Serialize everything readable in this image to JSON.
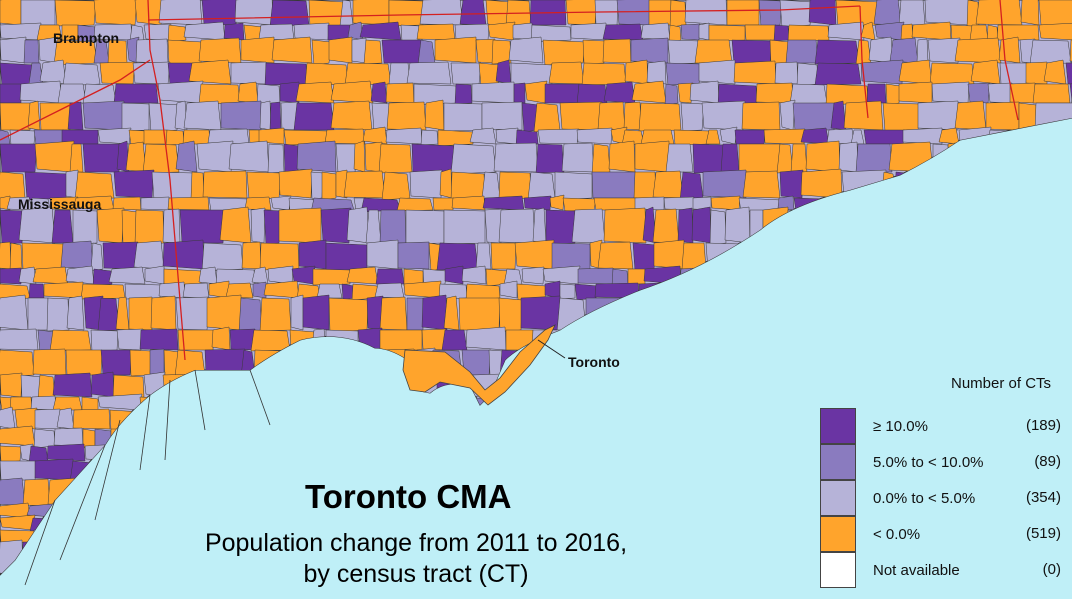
{
  "map": {
    "title": "Toronto CMA",
    "subtitle_line1": "Population change from 2011 to 2016,",
    "subtitle_line2": "by census tract (CT)",
    "places": {
      "brampton": "Brampton",
      "mississauga": "Mississauga",
      "toronto": "Toronto"
    },
    "colors": {
      "water": "#bfeff7",
      "high": "#6a34a3",
      "mid": "#8a7bbf",
      "low": "#b6b3d8",
      "negative": "#ffa42c",
      "na": "#ffffff",
      "boundary": "#d42020"
    }
  },
  "legend": {
    "header": "Number of CTs",
    "items": [
      {
        "label": "≥ 10.0%",
        "count": "(189)",
        "color": "#6a34a3"
      },
      {
        "label": "5.0% to < 10.0%",
        "count": "(89)",
        "color": "#8a7bbf"
      },
      {
        "label": "0.0% to < 5.0%",
        "count": "(354)",
        "color": "#b6b3d8"
      },
      {
        "label": "< 0.0%",
        "count": "(519)",
        "color": "#ffa42c"
      },
      {
        "label": "Not available",
        "count": "(0)",
        "color": "#ffffff"
      }
    ]
  }
}
